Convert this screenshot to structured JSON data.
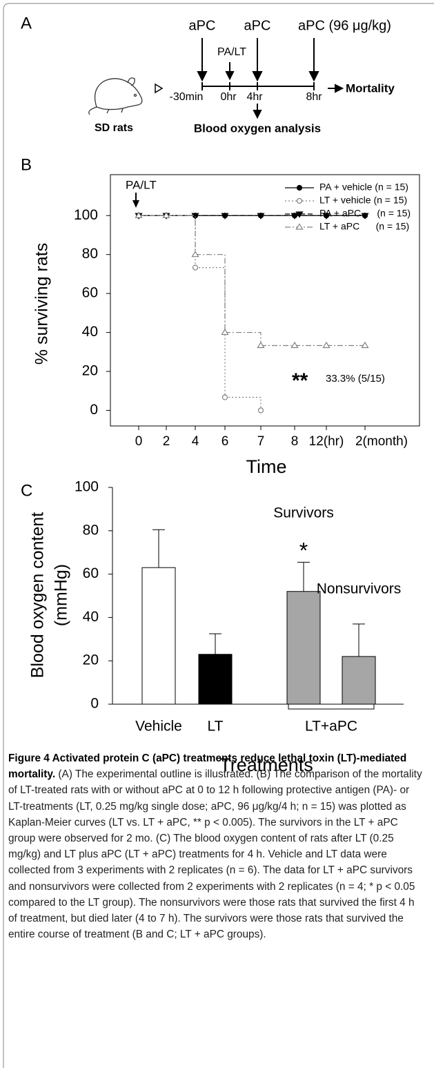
{
  "panel_a": {
    "label": "A",
    "arrows": [
      "aPC",
      "PA/LT",
      "aPC",
      "aPC (96 μg/kg)"
    ],
    "timepoints": [
      "-30min",
      "0hr",
      "4hr",
      "8hr"
    ],
    "outcome": "Mortality",
    "subject": "SD rats",
    "analysis": "Blood oxygen analysis"
  },
  "chart_data": [
    {
      "type": "line",
      "panel": "B",
      "step": true,
      "ylabel": "% surviving rats",
      "xlabel": "Time",
      "categories": [
        "0",
        "2",
        "4",
        "6",
        "7",
        "8",
        "12(hr)",
        "2(month)"
      ],
      "ylim": [
        -8,
        121
      ],
      "yticks": [
        0,
        20,
        40,
        60,
        80,
        100
      ],
      "legend": "upper right",
      "series": [
        {
          "name": "PA + vehicle (n = 15)",
          "color": "#000000",
          "dash": "solid",
          "marker": "filled-circle",
          "values": [
            100,
            100,
            100,
            100,
            100,
            100,
            100,
            100
          ]
        },
        {
          "name": "LT + vehicle (n = 15)",
          "color": "#808080",
          "dash": "dotted",
          "marker": "open-circle",
          "values": [
            100,
            100,
            73.3,
            6.7,
            0,
            null,
            null,
            null
          ]
        },
        {
          "name": "PA + aPC      (n = 15)",
          "color": "#000000",
          "dash": "dashed",
          "marker": "filled-triangle-down",
          "values": [
            100,
            100,
            100,
            100,
            100,
            100,
            100,
            100
          ]
        },
        {
          "name": "LT + aPC      (n = 15)",
          "color": "#808080",
          "dash": "dashdot",
          "marker": "open-triangle-up",
          "values": [
            100,
            100,
            80,
            40,
            33.3,
            33.3,
            33.3,
            33.3
          ]
        }
      ],
      "annotations": [
        "PA/LT",
        "**",
        "33.3% (5/15)"
      ]
    },
    {
      "type": "bar",
      "panel": "C",
      "ylabel": [
        "Blood oxygen content",
        "(mmHg)"
      ],
      "xlabel": "Treatments",
      "categories": [
        "Vehicle",
        "LT",
        null,
        null
      ],
      "group_label": "LT+aPC",
      "values": [
        63,
        23,
        52,
        22
      ],
      "errors": [
        17.5,
        9.5,
        13.5,
        15
      ],
      "colors": [
        "#ffffff",
        "#000000",
        "#a6a6a6",
        "#a6a6a6"
      ],
      "ylim": [
        0,
        100
      ],
      "yticks": [
        0,
        20,
        40,
        60,
        80,
        100
      ],
      "annotations": [
        "Survivors",
        "*",
        "Nonsurvivors"
      ]
    }
  ],
  "caption": {
    "title": "Figure 4 Activated protein C (aPC) treatments reduce lethal toxin (LT)-mediated mortality.",
    "text": "(A) The experimental outline is illustrated. (B) The comparison of the mortality of LT-treated rats with or without aPC at 0 to 12 h following protective antigen (PA)- or LT-treatments (LT, 0.25 mg/kg single dose; aPC, 96 μg/kg/4 h; n = 15) was plotted as Kaplan-Meier curves (LT vs. LT + aPC, ** p < 0.005). The survivors in the LT + aPC group were observed for 2 mo. (C) The blood oxygen content of rats after LT (0.25 mg/kg) and LT plus aPC (LT + aPC) treatments for 4 h. Vehicle and LT data were collected from 3 experiments with 2 replicates (n = 6). The data for LT + aPC survivors and nonsurvivors were collected from 2 experiments with 2 replicates (n = 4; * p < 0.05 compared to the LT group). The nonsurvivors were those rats that survived the first 4 h of treatment, but died later (4 to 7 h). The survivors were those rats that survived the entire course of treatment (B and C; LT + aPC groups)."
  }
}
